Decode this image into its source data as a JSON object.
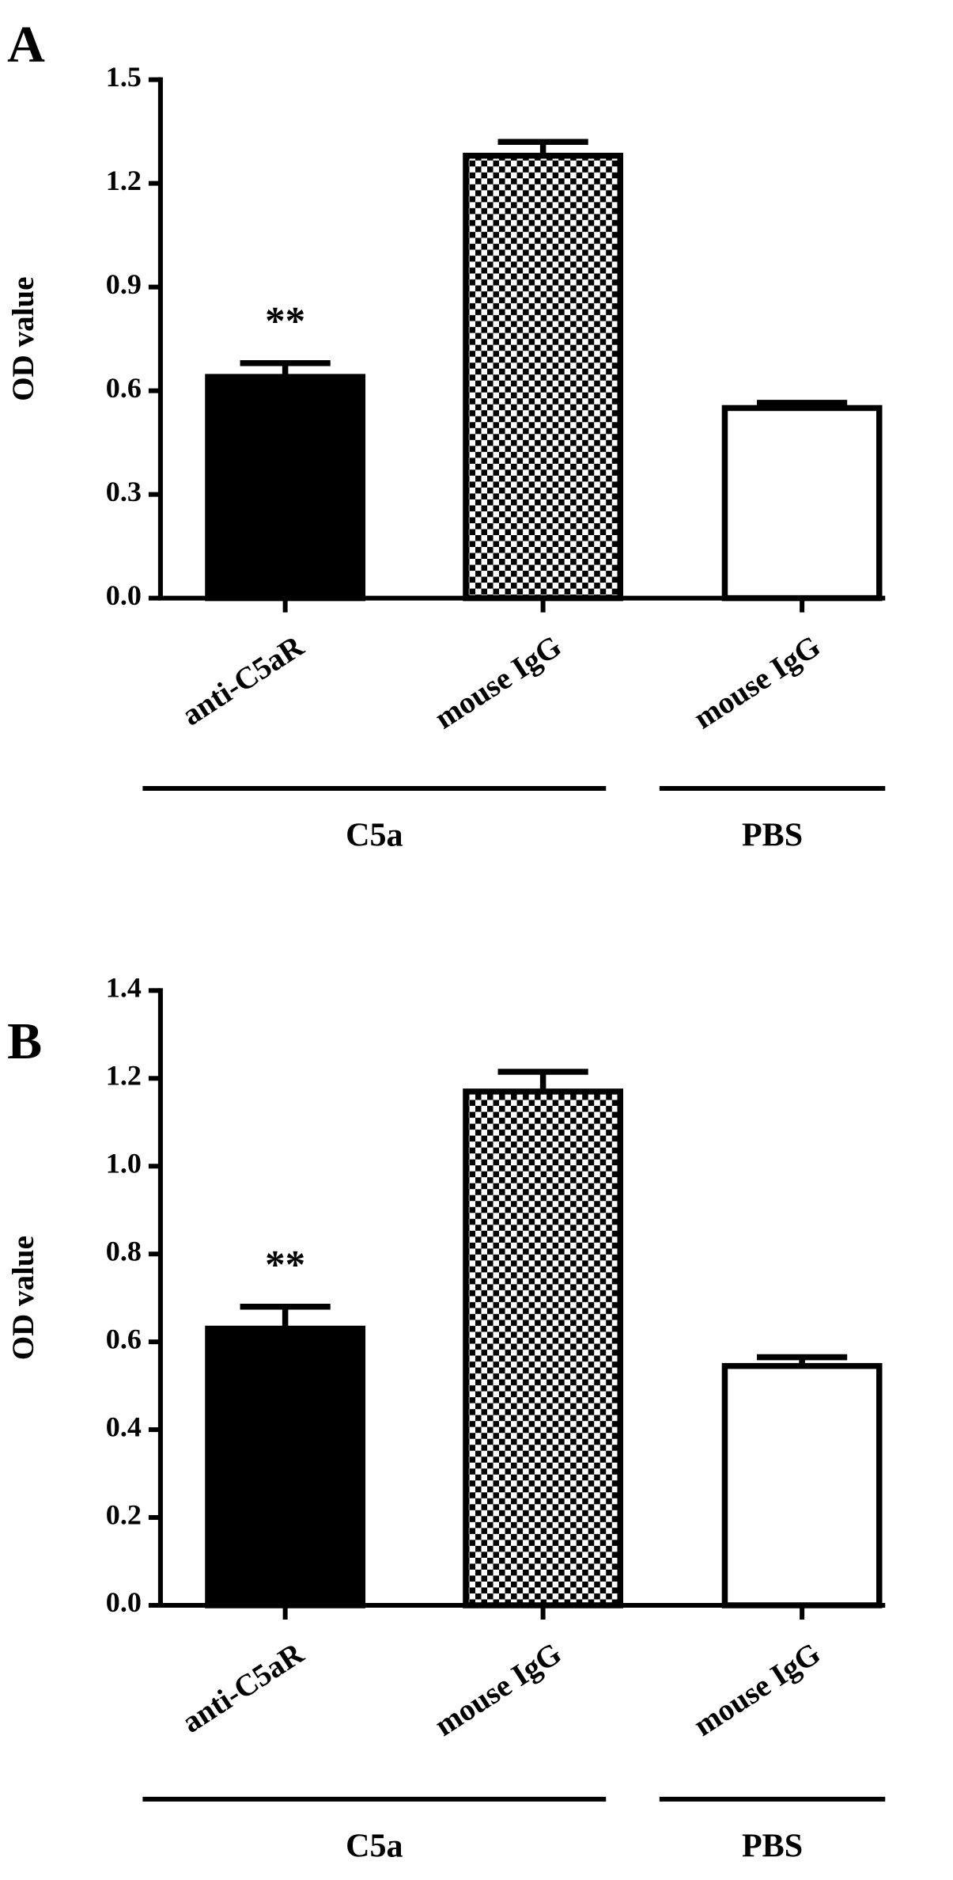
{
  "chart_data": [
    {
      "type": "bar",
      "panel": "A",
      "y_label": "OD value",
      "categories": [
        "anti-C5aR",
        "mouse IgG",
        "mouse IgG"
      ],
      "values": [
        0.64,
        1.28,
        0.55
      ],
      "errors": [
        0.04,
        0.04,
        0.015
      ],
      "annotations": [
        "**",
        null,
        null
      ],
      "color": "#000000",
      "bar_fills": [
        "solid",
        "checkerboard",
        "hollow"
      ],
      "groups": [
        {
          "label": "C5a",
          "span": 2
        },
        {
          "label": "PBS",
          "span": 1
        }
      ],
      "ylim": [
        0,
        1.5
      ],
      "yticks": [
        {
          "value": 0,
          "label": "0.0"
        },
        0.3,
        0.6,
        0.9,
        1.2,
        1.5
      ]
    },
    {
      "type": "bar",
      "panel": "B",
      "y_label": "OD value",
      "categories": [
        "anti-C5aR",
        "mouse IgG",
        "mouse IgG"
      ],
      "values": [
        0.63,
        1.17,
        0.545
      ],
      "errors": [
        0.05,
        0.045,
        0.02
      ],
      "annotations": [
        "**",
        null,
        null
      ],
      "color": "#000000",
      "bar_fills": [
        "solid",
        "checkerboard",
        "hollow"
      ],
      "groups": [
        {
          "label": "C5a",
          "span": 2
        },
        {
          "label": "PBS",
          "span": 1
        }
      ],
      "ylim": [
        0,
        1.4
      ],
      "yticks": [
        {
          "value": 0,
          "label": "0.0"
        },
        0.2,
        0.4,
        0.6,
        0.8,
        {
          "value": 1,
          "label": "1.0"
        },
        1.2,
        1.4
      ]
    }
  ]
}
